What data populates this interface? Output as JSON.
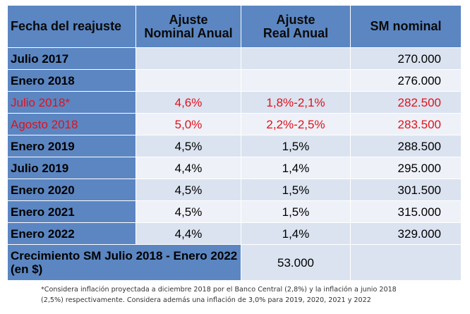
{
  "header": {
    "col1": "Fecha del reajuste",
    "col2_line1": "Ajuste",
    "col2_line2": "Nominal Anual",
    "col3_line1": "Ajuste",
    "col3_line2": "Real Anual",
    "col4": "SM nominal"
  },
  "rows": [
    {
      "fecha": "Julio 2017",
      "nominal": "",
      "real": "",
      "sm": "270.000"
    },
    {
      "fecha": "Enero 2018",
      "nominal": "",
      "real": "",
      "sm": "276.000"
    },
    {
      "fecha": "Julio 2018*",
      "nominal": "4,6%",
      "real": "1,8%-2,1%",
      "sm": "282.500"
    },
    {
      "fecha": "Agosto 2018",
      "nominal": "5,0%",
      "real": "2,2%-2,5%",
      "sm": "283.500"
    },
    {
      "fecha": "Enero 2019",
      "nominal": "4,5%",
      "real": "1,5%",
      "sm": "288.500"
    },
    {
      "fecha": "Julio 2019",
      "nominal": "4,4%",
      "real": "1,4%",
      "sm": "295.000"
    },
    {
      "fecha": "Enero 2020",
      "nominal": "4,5%",
      "real": "1,5%",
      "sm": "301.500"
    },
    {
      "fecha": "Enero 2021",
      "nominal": "4,5%",
      "real": "1,5%",
      "sm": "315.000"
    },
    {
      "fecha": "Enero 2022",
      "nominal": "4,4%",
      "real": "1,4%",
      "sm": "329.000"
    }
  ],
  "total": {
    "label": "Crecimiento SM Julio 2018 - Enero 2022 (en $)",
    "value": "53.000"
  },
  "footnote": {
    "line1": "*Considera inflación proyectada a diciembre 2018 por el Banco Central (2,8%) y la inflación a junio 2018",
    "line2": "(2,5%) respectivamente.  Considera además una inflación de 3,0% para 2019, 2020, 2021 y 2022"
  },
  "colors": {
    "header_bg": "#5b86c2",
    "cell_bg": "#dbe3f0",
    "cell_bg_alt": "#eef1f8",
    "highlight_text": "#e0111b"
  }
}
